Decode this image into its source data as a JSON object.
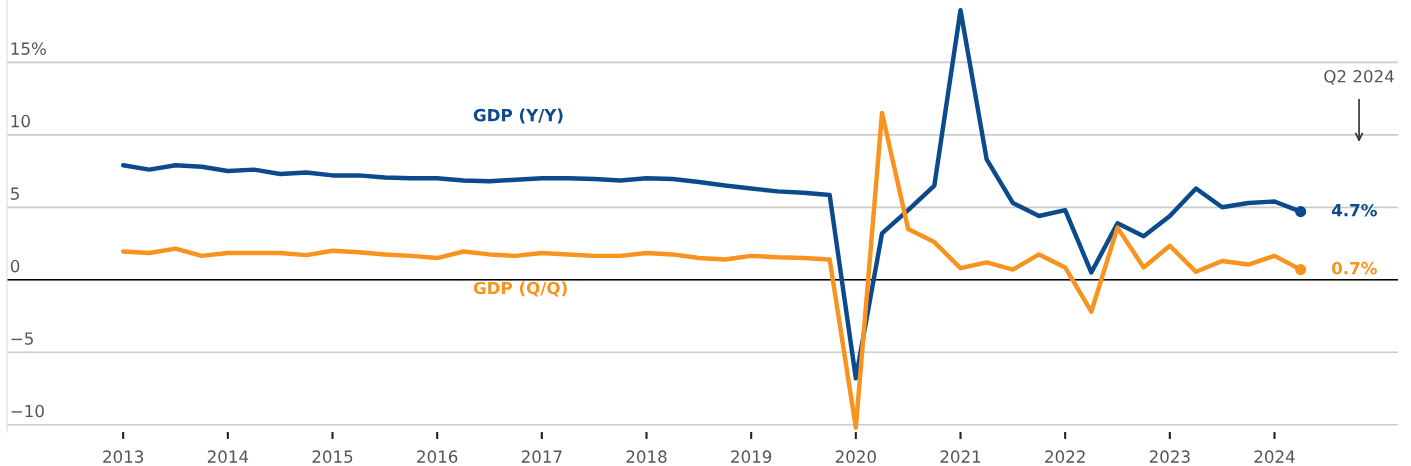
{
  "chart_data": {
    "type": "line",
    "x": [
      2013,
      2013.25,
      2013.5,
      2013.75,
      2014,
      2014.25,
      2014.5,
      2014.75,
      2015,
      2015.25,
      2015.5,
      2015.75,
      2016,
      2016.25,
      2016.5,
      2016.75,
      2017,
      2017.25,
      2017.5,
      2017.75,
      2018,
      2018.25,
      2018.5,
      2018.75,
      2019,
      2019.25,
      2019.5,
      2019.75,
      2020,
      2020.25,
      2020.5,
      2020.75,
      2021,
      2021.25,
      2021.5,
      2021.75,
      2022,
      2022.25,
      2022.5,
      2022.75,
      2023,
      2023.25,
      2023.5,
      2023.75,
      2024,
      2024.25
    ],
    "series": [
      {
        "name": "GDP (Y/Y)",
        "color": "#0b4a8b",
        "values": [
          7.9,
          7.6,
          7.9,
          7.8,
          7.5,
          7.6,
          7.3,
          7.4,
          7.2,
          7.2,
          7.05,
          7.0,
          7.0,
          6.85,
          6.8,
          6.9,
          7.0,
          7.0,
          6.95,
          6.85,
          7.0,
          6.95,
          6.75,
          6.5,
          6.3,
          6.1,
          6.0,
          5.85,
          -6.8,
          3.2,
          4.8,
          6.5,
          18.6,
          8.3,
          5.3,
          4.4,
          4.8,
          0.5,
          3.9,
          3.0,
          4.4,
          6.3,
          5.0,
          5.3,
          5.4,
          4.7
        ],
        "value_labels": [
          null,
          null,
          null,
          null,
          null,
          null,
          null,
          null,
          null,
          null,
          null,
          null,
          null,
          null,
          null,
          null,
          null,
          null,
          null,
          null,
          null,
          null,
          null,
          null,
          null,
          null,
          null,
          null,
          null,
          null,
          null,
          null,
          null,
          null,
          null,
          null,
          null,
          null,
          null,
          null,
          null,
          null,
          null,
          null,
          null,
          "4.7%"
        ]
      },
      {
        "name": "GDP (Q/Q)",
        "color": "#f7931e",
        "values": [
          1.95,
          1.85,
          2.15,
          1.65,
          1.85,
          1.85,
          1.85,
          1.7,
          2.0,
          1.9,
          1.75,
          1.65,
          1.5,
          1.95,
          1.75,
          1.65,
          1.85,
          1.75,
          1.65,
          1.65,
          1.85,
          1.75,
          1.5,
          1.4,
          1.65,
          1.55,
          1.5,
          1.4,
          -10.2,
          11.5,
          3.5,
          2.6,
          0.8,
          1.2,
          0.7,
          1.75,
          0.85,
          -2.2,
          3.6,
          0.85,
          2.35,
          0.55,
          1.3,
          1.05,
          1.65,
          0.7
        ],
        "value_labels": [
          null,
          null,
          null,
          null,
          null,
          null,
          null,
          null,
          null,
          null,
          null,
          null,
          null,
          null,
          null,
          null,
          null,
          null,
          null,
          null,
          null,
          null,
          null,
          null,
          null,
          null,
          null,
          null,
          null,
          null,
          null,
          null,
          null,
          null,
          null,
          null,
          null,
          null,
          null,
          null,
          null,
          null,
          null,
          null,
          null,
          "0.7%"
        ]
      }
    ],
    "xlim": [
      2011.89,
      2025.18
    ],
    "xticks": [
      2013,
      2014,
      2015,
      2016,
      2017,
      2018,
      2019,
      2020,
      2021,
      2022,
      2023,
      2024
    ],
    "ylim": [
      -10.5,
      19.3
    ],
    "yticks": [
      {
        "value": -10,
        "label": "−10"
      },
      {
        "value": -5,
        "label": "−5"
      },
      0,
      5,
      10,
      {
        "value": 15,
        "label": "15%"
      }
    ],
    "grid": "y",
    "ref_lines": [
      {
        "axis": "y",
        "value": 0,
        "color": "#000000"
      }
    ],
    "annotations": [
      "Q2 2024"
    ]
  }
}
